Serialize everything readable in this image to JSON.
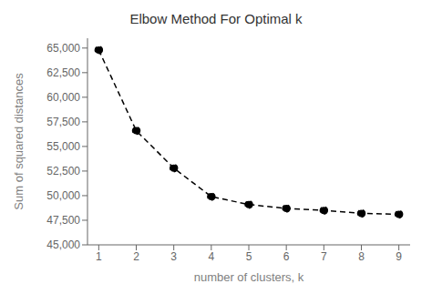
{
  "chart_data": {
    "type": "line",
    "title": "Elbow Method For Optimal k",
    "xlabel": "number of clusters, k",
    "ylabel": "Sum of squared distances",
    "x": [
      1,
      2,
      3,
      4,
      5,
      6,
      7,
      8,
      9
    ],
    "values": [
      64800,
      56600,
      52800,
      49900,
      49100,
      48700,
      48500,
      48200,
      48100
    ],
    "xlim": [
      0.7,
      9.3
    ],
    "xticks": [
      1,
      2,
      3,
      4,
      5,
      6,
      7,
      8,
      9
    ],
    "ylim": [
      45000,
      66000
    ],
    "yticks": [
      {
        "value": 45000,
        "label": "45,000"
      },
      {
        "value": 47500,
        "label": "47,500"
      },
      {
        "value": 50000,
        "label": "50,000"
      },
      {
        "value": 52500,
        "label": "52,500"
      },
      {
        "value": 55000,
        "label": "55,000"
      },
      {
        "value": 57500,
        "label": "57,500"
      },
      {
        "value": 60000,
        "label": "60,000"
      },
      {
        "value": 62500,
        "label": "62,500"
      },
      {
        "value": 65000,
        "label": "65,000"
      }
    ],
    "color": "#000000",
    "line_style": "dashed",
    "marker": "circle",
    "grid": false
  }
}
